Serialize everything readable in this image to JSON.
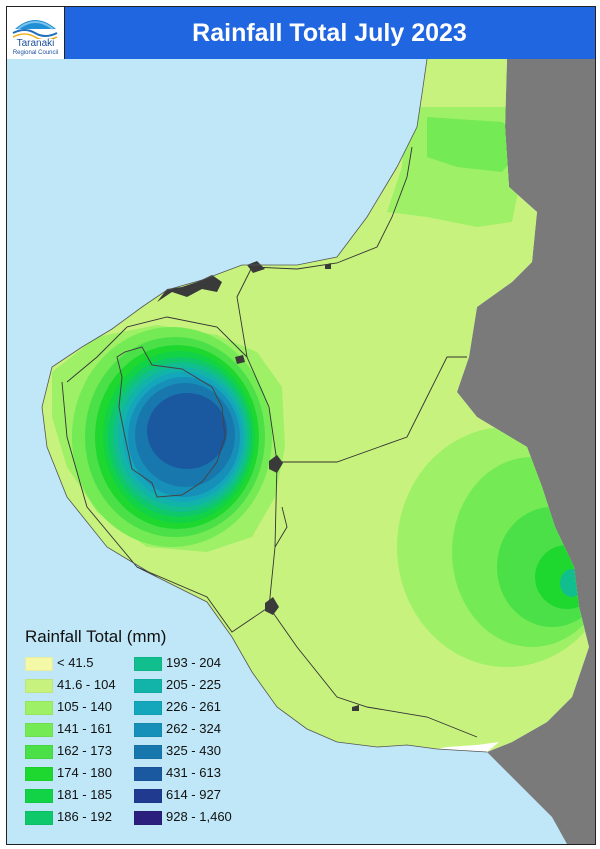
{
  "header": {
    "title": "Rainfall Total July 2023",
    "logo_name": "Taranaki",
    "logo_sub": "Regional Council"
  },
  "legend": {
    "title": "Rainfall Total (mm)",
    "items": [
      {
        "label": "< 41.5",
        "color": "#f4f9a8"
      },
      {
        "label": "41.6 - 104",
        "color": "#c8f27e"
      },
      {
        "label": "105 - 140",
        "color": "#9ef067"
      },
      {
        "label": "141 - 161",
        "color": "#74ea55"
      },
      {
        "label": "162 - 173",
        "color": "#4be047"
      },
      {
        "label": "174 - 180",
        "color": "#1fd82f"
      },
      {
        "label": "181 - 185",
        "color": "#12d246"
      },
      {
        "label": "186 - 192",
        "color": "#0fc86a"
      },
      {
        "label": "193 - 204",
        "color": "#11be8e"
      },
      {
        "label": "205 - 225",
        "color": "#12b4a9"
      },
      {
        "label": "226 - 261",
        "color": "#14a7bb"
      },
      {
        "label": "262 - 324",
        "color": "#1690b8"
      },
      {
        "label": "325 - 430",
        "color": "#1878ae"
      },
      {
        "label": "431 - 613",
        "color": "#1a58a0"
      },
      {
        "label": "614 - 927",
        "color": "#203a8f"
      },
      {
        "label": "928 - 1,460",
        "color": "#2a1f7c"
      }
    ]
  },
  "colors": {
    "sea": "#bfe7f7",
    "outside_region": "#7a7a7a",
    "urban": "#3a3a3a",
    "title_bar": "#1f66e0"
  }
}
